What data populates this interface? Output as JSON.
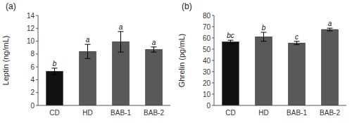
{
  "chart_data": [
    {
      "type": "bar",
      "title": "(a)",
      "categories": [
        "CD",
        "HD",
        "BAB-1",
        "BAB-2"
      ],
      "values": [
        5.3,
        8.4,
        9.9,
        8.7
      ],
      "errors": [
        0.5,
        1.1,
        1.6,
        0.4
      ],
      "colors": [
        "#111111",
        "#595959",
        "#595959",
        "#595959"
      ],
      "annotations": [
        "b",
        "a",
        "a",
        "a"
      ],
      "ylabel": "Leptin (ng/mL)",
      "ylim": [
        0,
        14
      ],
      "yticks": [
        0,
        2,
        4,
        6,
        8,
        10,
        12,
        14
      ],
      "grid": false
    },
    {
      "type": "bar",
      "title": "(b)",
      "categories": [
        "CD",
        "HD",
        "BAB-1",
        "BAB-2"
      ],
      "values": [
        56.5,
        61.0,
        55.5,
        67.5
      ],
      "errors": [
        1.5,
        4.0,
        1.5,
        1.2
      ],
      "colors": [
        "#111111",
        "#595959",
        "#595959",
        "#595959"
      ],
      "annotations": [
        "bc",
        "b",
        "c",
        "a"
      ],
      "ylabel": "Ghrelin (pg/mL)",
      "ylim": [
        0,
        80
      ],
      "yticks": [
        0,
        10,
        20,
        30,
        40,
        50,
        60,
        70,
        80
      ],
      "grid": false
    }
  ]
}
